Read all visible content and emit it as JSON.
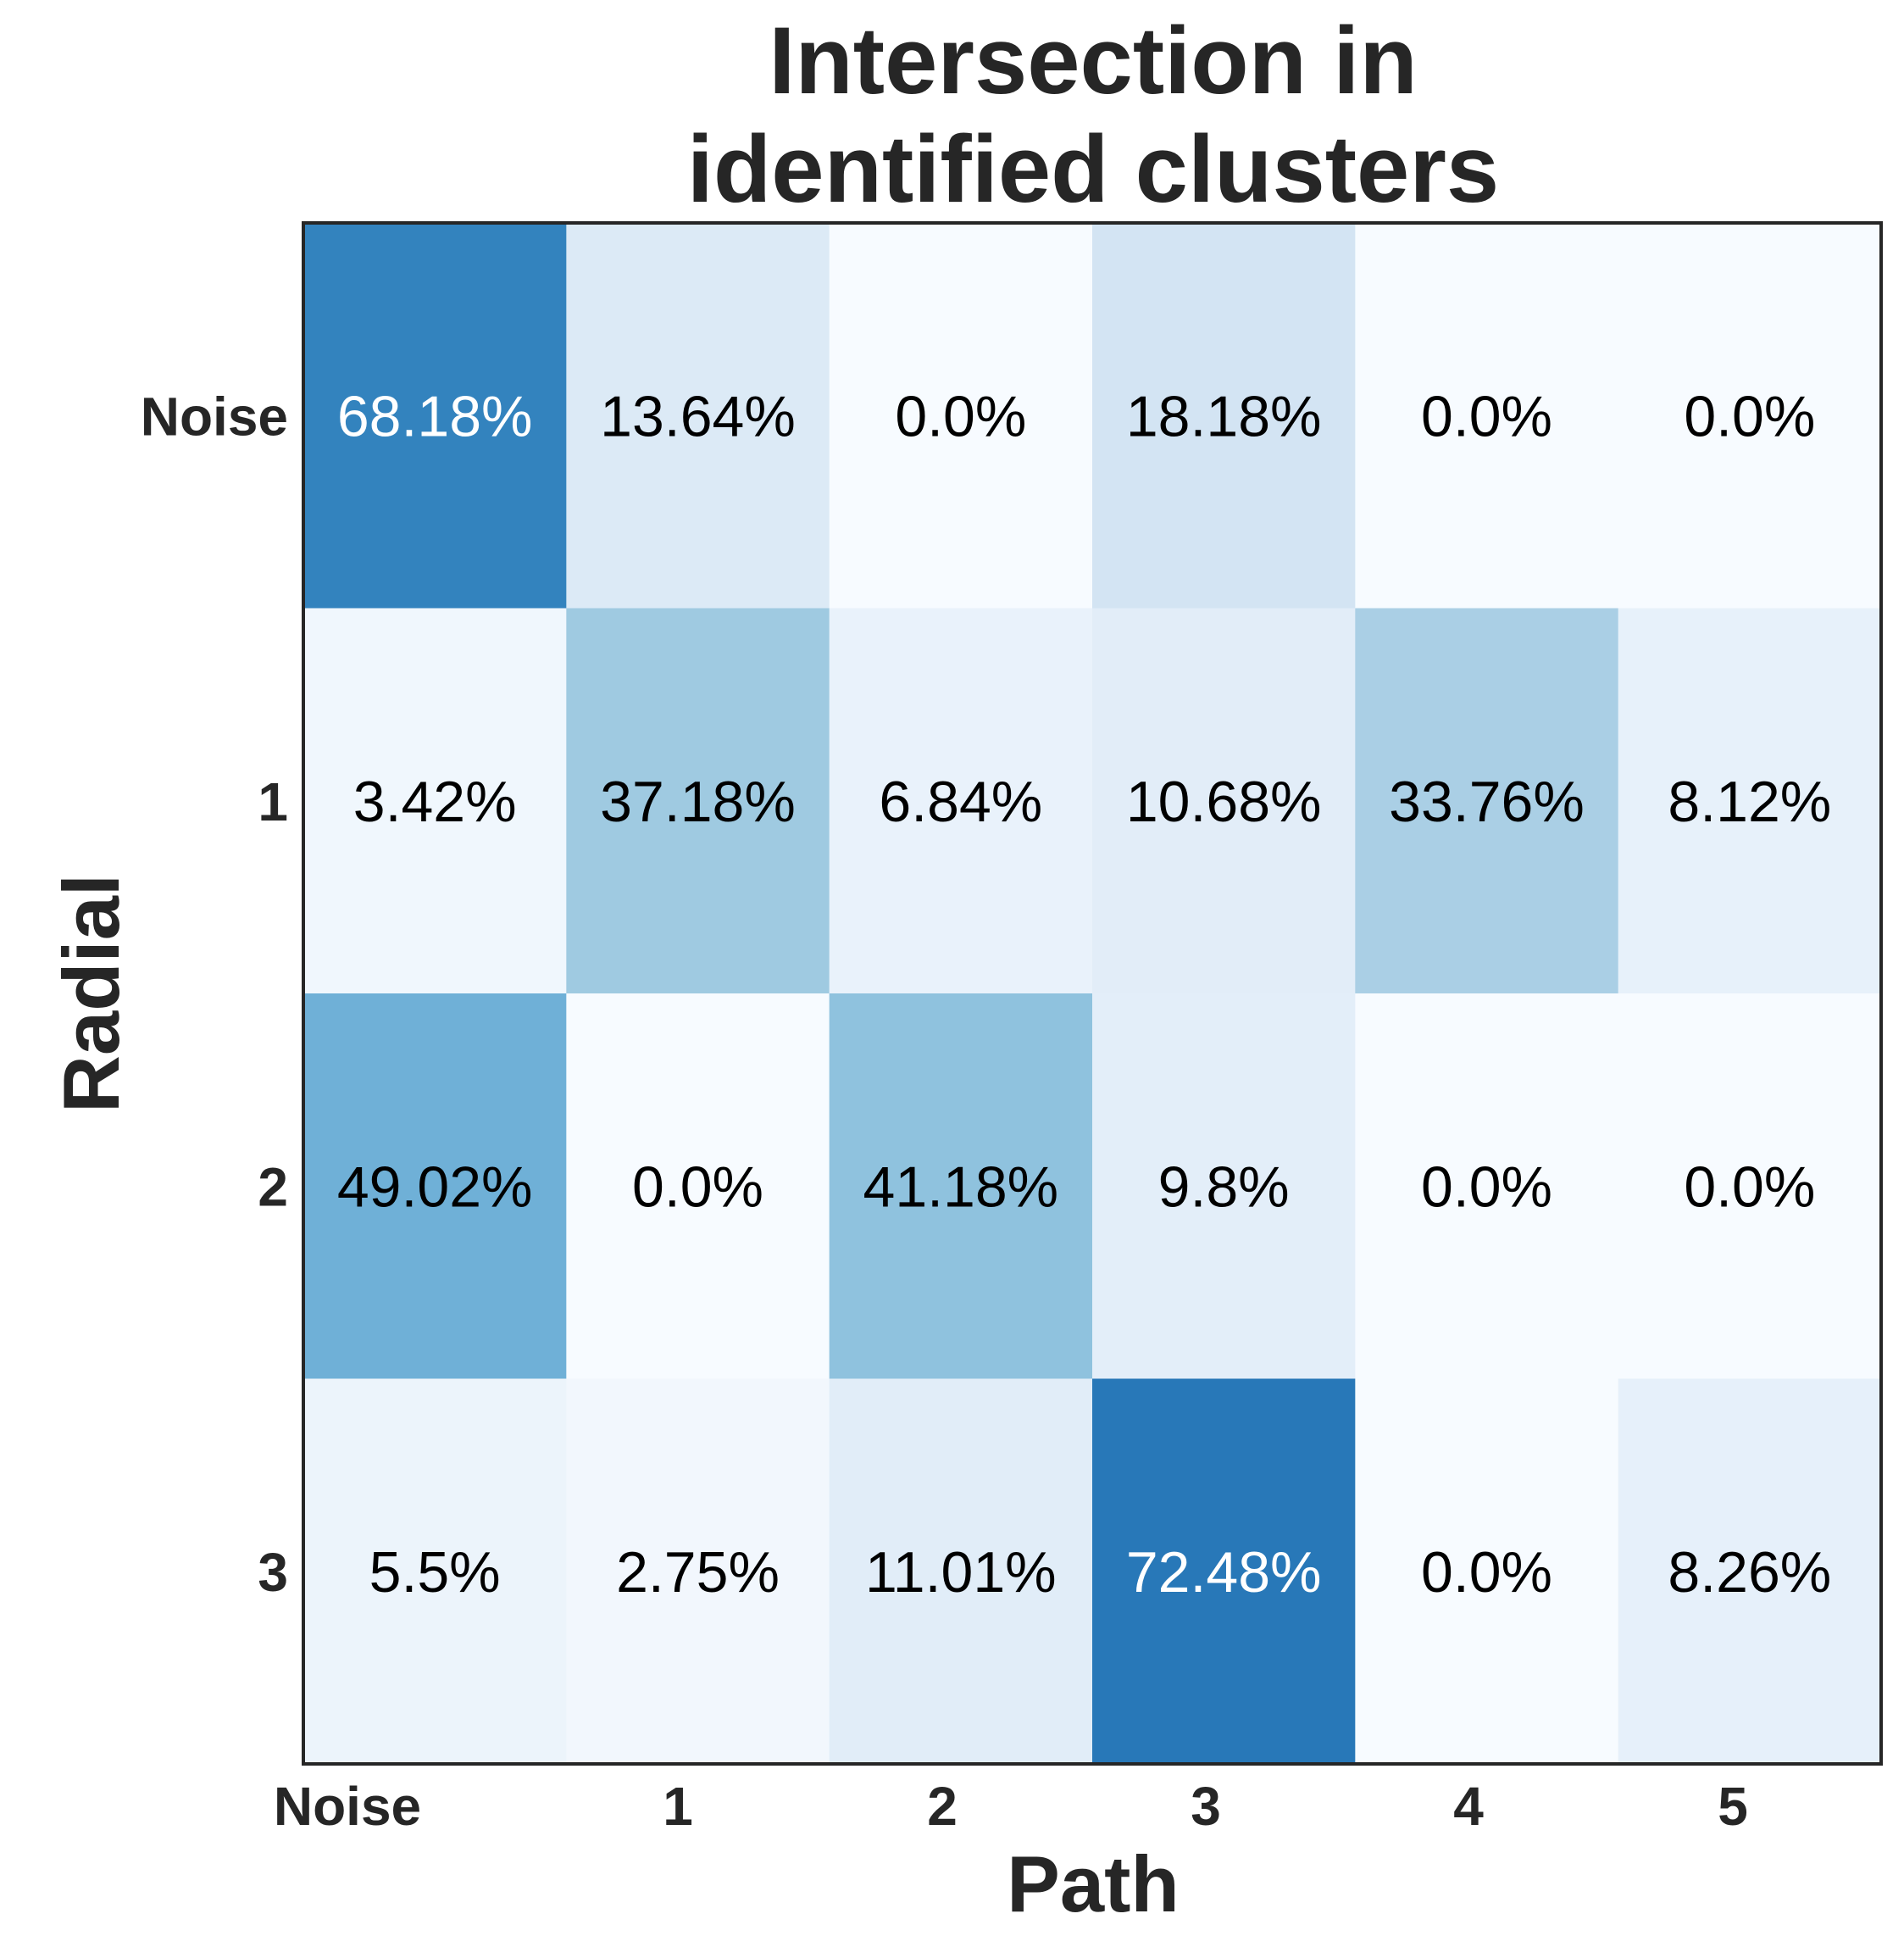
{
  "chart_data": {
    "type": "heatmap",
    "title_lines": [
      "Intersection in",
      "identified clusters"
    ],
    "xlabel": "Path",
    "ylabel": "Radial",
    "x_categories": [
      "Noise",
      "1",
      "2",
      "3",
      "4",
      "5"
    ],
    "y_categories": [
      "Noise",
      "1",
      "2",
      "3"
    ],
    "values": [
      [
        68.18,
        13.64,
        0.0,
        18.18,
        0.0,
        0.0
      ],
      [
        3.42,
        37.18,
        6.84,
        10.68,
        33.76,
        8.12
      ],
      [
        49.02,
        0.0,
        41.18,
        9.8,
        0.0,
        0.0
      ],
      [
        5.5,
        2.75,
        11.01,
        72.48,
        0.0,
        8.26
      ]
    ],
    "value_labels": [
      [
        "68.18%",
        "13.64%",
        "0.0%",
        "18.18%",
        "0.0%",
        "0.0%"
      ],
      [
        "3.42%",
        "37.18%",
        "6.84%",
        "10.68%",
        "33.76%",
        "8.12%"
      ],
      [
        "49.02%",
        "0.0%",
        "41.18%",
        "9.8%",
        "0.0%",
        "0.0%"
      ],
      [
        "5.5%",
        "2.75%",
        "11.01%",
        "72.48%",
        "0.0%",
        "8.26%"
      ]
    ],
    "colormap": "Blues",
    "value_range": [
      0,
      100
    ],
    "grid": false
  },
  "colors": {
    "frame": "#262626",
    "text_dark": "#000000",
    "text_light": "#ffffff"
  }
}
